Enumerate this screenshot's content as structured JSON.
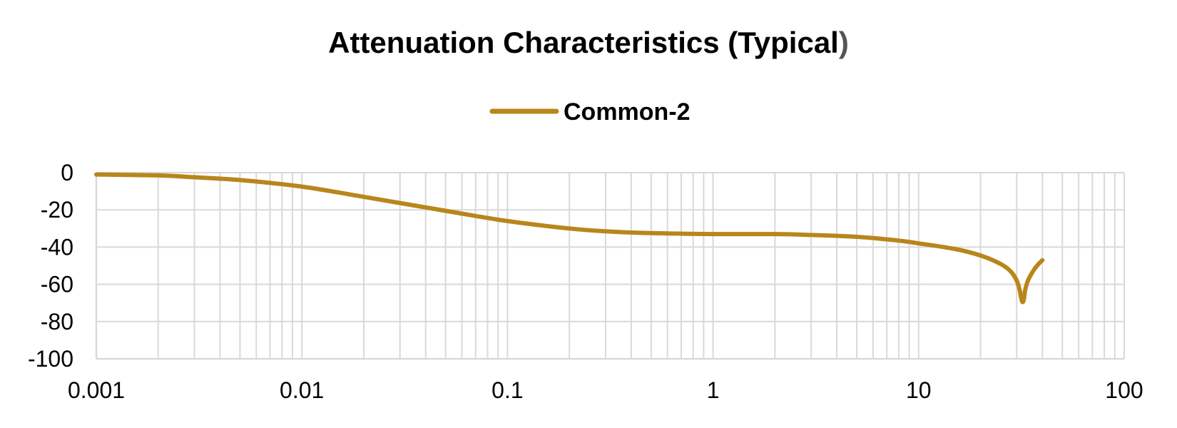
{
  "chart_data": {
    "type": "line",
    "title": "Attenuation Characteristics (Typical",
    "title_suffix": ")",
    "xlabel": "",
    "ylabel": "",
    "x_scale": "log",
    "xlim": [
      0.001,
      100
    ],
    "ylim": [
      -100,
      0
    ],
    "x_ticks": [
      "0.001",
      "0.01",
      "0.1",
      "1",
      "10",
      "100"
    ],
    "x_tick_values": [
      0.001,
      0.01,
      0.1,
      1,
      10,
      100
    ],
    "y_ticks": [
      "0",
      "-20",
      "-40",
      "-60",
      "-80",
      "-100"
    ],
    "y_tick_values": [
      0,
      -20,
      -40,
      -60,
      -80,
      -100
    ],
    "grid": true,
    "legend_position": "top-center",
    "series": [
      {
        "name": "Common-2",
        "color": "#b8861b",
        "x": [
          0.001,
          0.002,
          0.003,
          0.005,
          0.01,
          0.02,
          0.05,
          0.1,
          0.2,
          0.3,
          0.5,
          1,
          2,
          3,
          5,
          8,
          10,
          15,
          20,
          25,
          28,
          30,
          31,
          31.5,
          32,
          32.5,
          33,
          34,
          36,
          38,
          40
        ],
        "y": [
          -1,
          -1.5,
          -2.5,
          -4,
          -7.5,
          -13,
          -20.5,
          -26,
          -30,
          -31.5,
          -32.5,
          -33,
          -33,
          -33.5,
          -34.5,
          -36.5,
          -38,
          -41,
          -44.5,
          -49,
          -53,
          -58,
          -63,
          -67,
          -69.5,
          -68,
          -63,
          -58,
          -53,
          -49.5,
          -47
        ]
      }
    ]
  }
}
